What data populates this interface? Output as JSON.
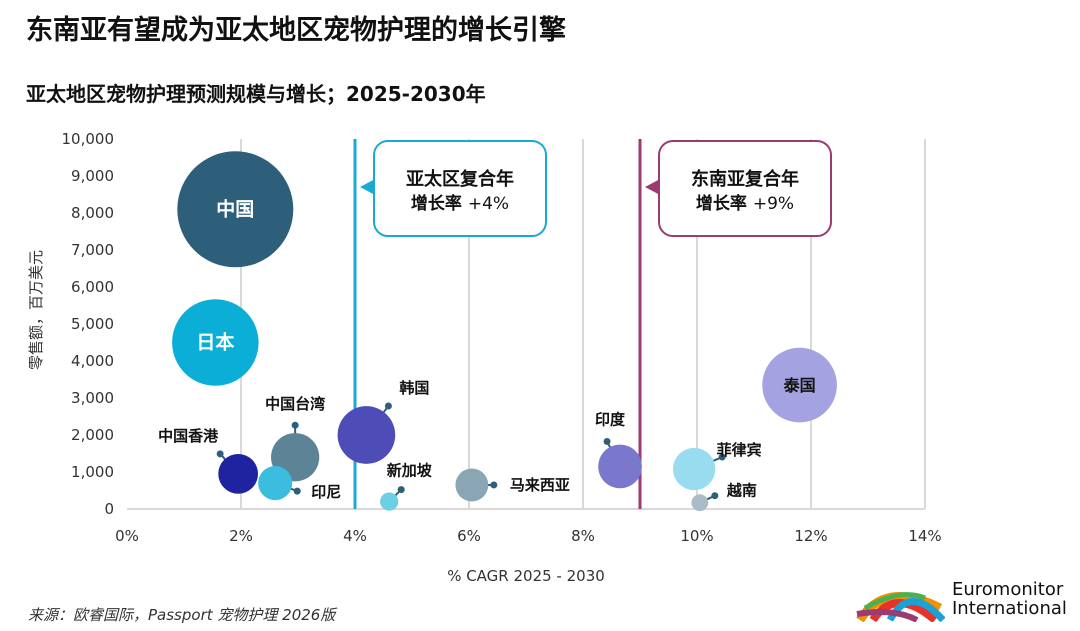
{
  "title": "东南亚有望成为亚太地区宠物护理的增长引擎",
  "subtitle": "亚太地区宠物护理预测规模与增长；2025-2030年",
  "source": "来源：欧睿国际，Passport 宠物护理 2026版",
  "logo": {
    "line1": "Euromonitor",
    "line2": "International"
  },
  "chart_data": {
    "type": "scatter",
    "subtype": "bubble",
    "xlabel": "% CAGR 2025 - 2030",
    "ylabel": "零售额，百万美元",
    "xlim": [
      0,
      14
    ],
    "ylim": [
      0,
      10000
    ],
    "xticks": [
      "0%",
      "2%",
      "4%",
      "6%",
      "8%",
      "10%",
      "12%",
      "14%"
    ],
    "yticks": [
      "0",
      "1,000",
      "2,000",
      "3,000",
      "4,000",
      "5,000",
      "6,000",
      "7,000",
      "8,000",
      "9,000",
      "10,000"
    ],
    "grid": "vertical",
    "reference_lines": [
      {
        "x": 4,
        "label1": "亚太区复合年",
        "label2": "增长率",
        "value": "+4%",
        "color": "#19a9d2"
      },
      {
        "x": 9,
        "label1": "东南亚复合年",
        "label2": "增长率",
        "value": "+9%",
        "color": "#9c3a72"
      }
    ],
    "points": [
      {
        "name": "中国",
        "x": 1.9,
        "y": 8100,
        "color": "#2e5f7a"
      },
      {
        "name": "日本",
        "x": 1.55,
        "y": 4500,
        "color": "#0aaed6"
      },
      {
        "name": "中国香港",
        "x": 1.95,
        "y": 950,
        "color": "#1f23a0"
      },
      {
        "name": "中国台湾",
        "x": 2.95,
        "y": 1400,
        "color": "#5c8396"
      },
      {
        "name": "印尼",
        "x": 2.6,
        "y": 700,
        "color": "#3bbde0"
      },
      {
        "name": "韩国",
        "x": 4.2,
        "y": 2000,
        "color": "#4e4db8"
      },
      {
        "name": "新加坡",
        "x": 4.6,
        "y": 200,
        "color": "#6ccfe6"
      },
      {
        "name": "马来西亚",
        "x": 6.05,
        "y": 650,
        "color": "#8aa5b4"
      },
      {
        "name": "印度",
        "x": 8.65,
        "y": 1150,
        "color": "#7a78cc"
      },
      {
        "name": "菲律宾",
        "x": 9.95,
        "y": 1080,
        "color": "#9adcef"
      },
      {
        "name": "越南",
        "x": 10.05,
        "y": 170,
        "color": "#a9bcc8"
      },
      {
        "name": "泰国",
        "x": 11.8,
        "y": 3350,
        "color": "#a4a2e0"
      }
    ]
  }
}
